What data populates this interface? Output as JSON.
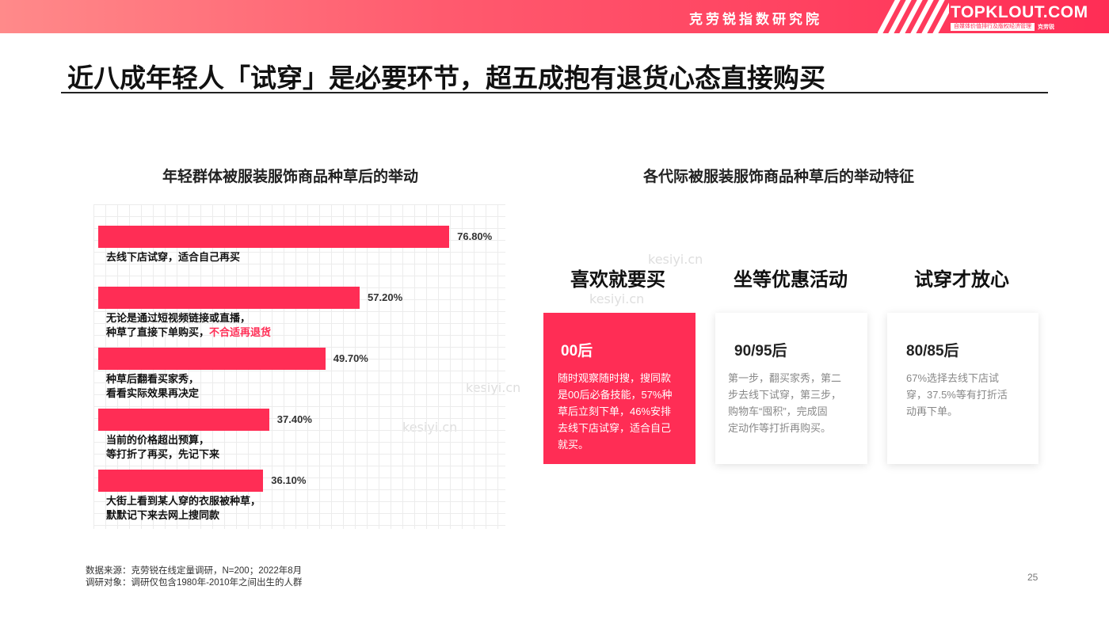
{
  "header": {
    "org_name": "克劳锐指数研究院",
    "brand": "TOPKLOUT.COM",
    "brand_tagline": "自媒体价值排行及版权经济管理",
    "brand_sub": "克劳锐"
  },
  "page_title": "近八成年轻人「试穿」是必要环节，超五成抱有退货心态直接购买",
  "left_chart_title": "年轻群体被服装服饰商品种草后的举动",
  "right_section_title": "各代际被服装服饰商品种草后的举动特征",
  "chart_data": {
    "type": "bar",
    "orientation": "horizontal",
    "title": "年轻群体被服装服饰商品种草后的举动",
    "unit": "%",
    "xlim": [
      0,
      100
    ],
    "grid": true,
    "categories": [
      "去线下店试穿，适合自己再买",
      "无论是通过短视频链接或直播，种草了直接下单购买，不合适再退货",
      "种草后翻看买家秀，看看实际效果再决定",
      "当前的价格超出预算，等打折了再买，先记下来",
      "大街上看到某人穿的衣服被种草，默默记下来去网上搜同款"
    ],
    "values": [
      76.8,
      57.2,
      49.7,
      37.4,
      36.1
    ],
    "value_labels": [
      "76.80%",
      "57.20%",
      "49.70%",
      "37.40%",
      "36.10%"
    ],
    "bar_color": "#ff2d55"
  },
  "bar_labels": [
    {
      "line1": "去线下店试穿，适合自己再买",
      "line2": "",
      "highlight": ""
    },
    {
      "line1": "无论是通过短视频链接或直播，",
      "line2": "种草了直接下单购买，",
      "highlight": "不合适再退货"
    },
    {
      "line1": "种草后翻看买家秀，",
      "line2": "看看实际效果再决定",
      "highlight": ""
    },
    {
      "line1": "当前的价格超出预算，",
      "line2": "等打折了再买，先记下来",
      "highlight": ""
    },
    {
      "line1": "大街上看到某人穿的衣服被种草，",
      "line2": "默默记下来去网上搜同款",
      "highlight": ""
    }
  ],
  "generations": [
    {
      "heading": "喜欢就要买",
      "generation": "00后",
      "text_lines": [
        "随时观察随时搜，搜同款",
        "是00后必备技能，57%种",
        "草后立刻下单，46%安排",
        "去线下店试穿，适合自己",
        "就买。"
      ]
    },
    {
      "heading": "坐等优惠活动",
      "generation": "90/95后",
      "text_lines": [
        "第一步，翻买家秀，第二",
        "步去线下试穿，第三步，",
        "购物车“囤积”，完成固",
        "定动作等打折再购买。"
      ]
    },
    {
      "heading": "试穿才放心",
      "generation": "80/85后",
      "text_lines": [
        "67%选择去线下店试",
        "穿，37.5%等有打折活",
        "动再下单。"
      ]
    }
  ],
  "watermark": "kesiyi.cn",
  "footer": {
    "source": "数据来源：克劳锐在线定量调研，N=200；2022年8月",
    "subject": "调研对象：调研仅包含1980年-2010年之间出生的人群"
  },
  "page_number": "25",
  "colors": {
    "accent": "#ff2d55",
    "header_start": "#ff8a8a"
  }
}
